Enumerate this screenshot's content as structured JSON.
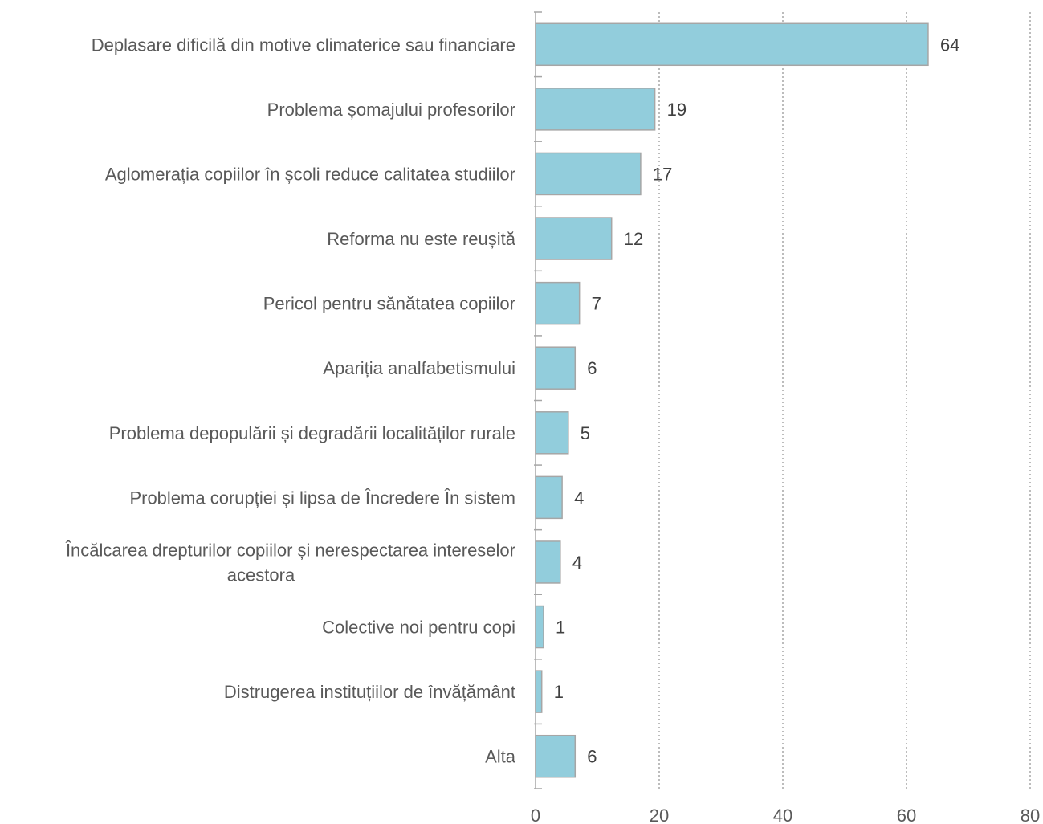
{
  "chart_data": {
    "type": "bar",
    "orientation": "horizontal",
    "categories": [
      "Deplasare dificilă din motive climaterice sau financiare",
      "Problema șomajului profesorilor",
      "Aglomerația copiilor în școli reduce calitatea studiilor",
      "Reforma nu este reușită",
      "Pericol pentru sănătatea copiilor",
      "Apariția analfabetismului",
      "Problema depopulării și degradării localităților rurale",
      "Problema corupției și lipsa de Încredere În sistem",
      "Încălcarea drepturilor copiilor și nerespectarea intereselor acestora",
      "Colective noi pentru copi",
      "Distrugerea instituțiilor de învățământ",
      "Alta"
    ],
    "category_lines": [
      [
        "Deplasare dificilă din motive climaterice sau financiare"
      ],
      [
        "Problema șomajului profesorilor"
      ],
      [
        "Aglomerația copiilor în școli reduce calitatea studiilor"
      ],
      [
        "Reforma nu este reușită"
      ],
      [
        "Pericol pentru sănătatea copiilor"
      ],
      [
        "Apariția analfabetismului"
      ],
      [
        "Problema depopulării și degradării localităților rurale"
      ],
      [
        "Problema corupției și lipsa de Încredere În sistem"
      ],
      [
        "Încălcarea drepturilor copiilor și nerespectarea intereselor",
        "acestora"
      ],
      [
        "Colective noi pentru copi"
      ],
      [
        "Distrugerea instituțiilor de învățământ"
      ],
      [
        "Alta"
      ]
    ],
    "values": [
      63.5,
      19.3,
      17.0,
      12.3,
      7.1,
      6.4,
      5.3,
      4.3,
      4.0,
      1.3,
      1.0,
      6.4
    ],
    "value_labels": [
      "64",
      "19",
      "17",
      "12",
      "7",
      "6",
      "5",
      "4",
      "4",
      "1",
      "1",
      "6"
    ],
    "xlim": [
      0,
      80
    ],
    "x_ticks": [
      "0",
      "20",
      "40",
      "60",
      "80"
    ],
    "gridlines": "vertical-dotted",
    "legend": "none",
    "colors": {
      "bar_fill": "#92cddc",
      "bar_stroke": "#a6a6a6",
      "axis": "#a6a6a6",
      "grid": "#a6a6a6"
    }
  }
}
